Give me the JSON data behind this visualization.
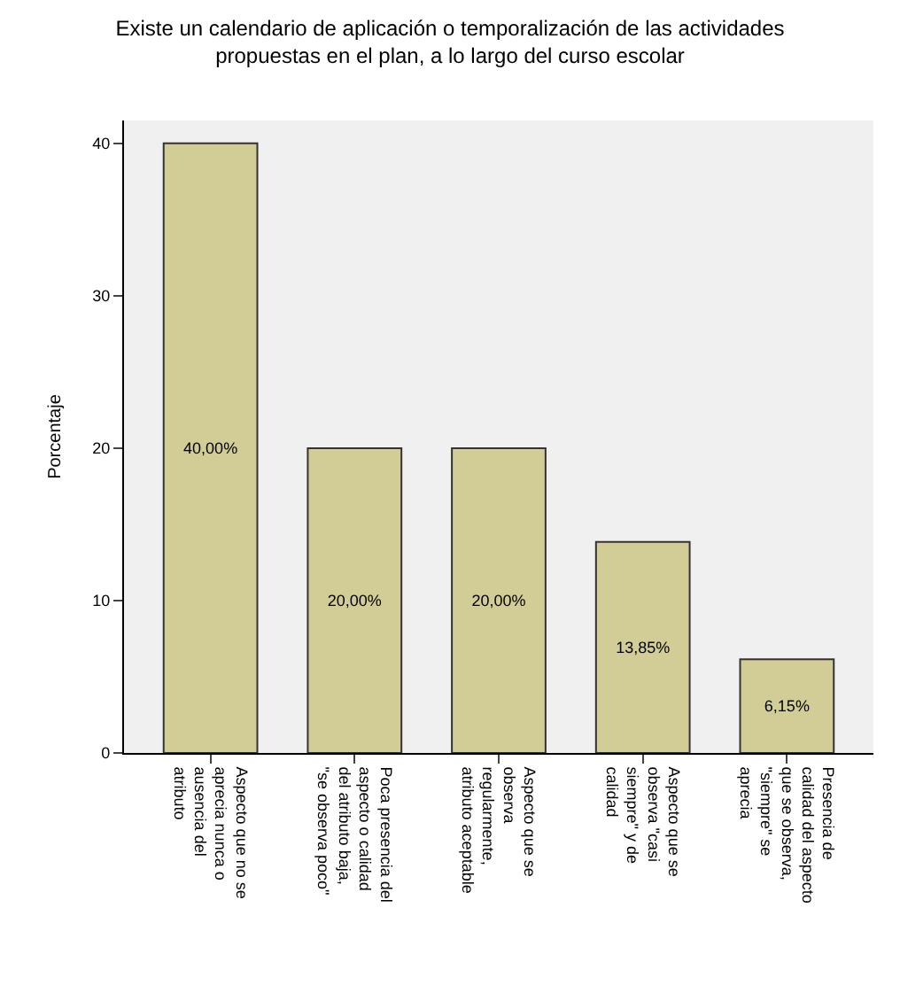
{
  "chart_data": {
    "type": "bar",
    "title": "Existe un calendario de aplicación o temporalización de las actividades\npropuestas en el plan, a lo largo del curso escolar",
    "ylabel": "Porcentaje",
    "categories": [
      "Aspecto que no se\naprecia nunca o\nausencia del\natributo",
      "Poca presencia del\naspecto o calidad\ndel atributo baja,\n\"se observa poco\"",
      "Aspecto que se\nobserva\nregularmente,\natributo aceptable",
      "Aspecto que se\nobserva \"casi\nsiempre\" y de\ncalidad",
      "Presencia de\ncalidad del aspecto\nque se observa,\n\"siempre\" se\naprecia"
    ],
    "values": [
      40,
      20,
      20,
      13.85,
      6.15
    ],
    "value_labels": [
      "40,00%",
      "20,00%",
      "20,00%",
      "13,85%",
      "6,15%"
    ],
    "color": "#d2cc96",
    "ylim": [
      0,
      41.5
    ],
    "yticks": [
      0,
      10,
      20,
      30,
      40
    ],
    "grid": false,
    "legend": false
  }
}
